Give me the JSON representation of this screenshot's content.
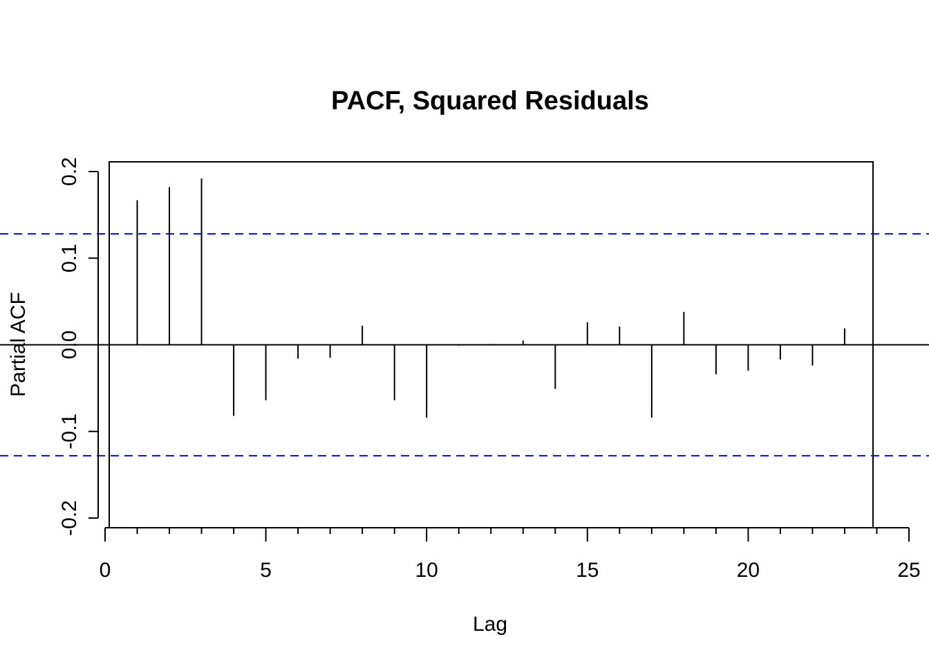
{
  "chart_data": {
    "type": "bar",
    "title": "PACF, Squared Residuals",
    "xlabel": "Lag",
    "ylabel": "Partial ACF",
    "xlim": [
      0,
      25
    ],
    "ylim": [
      -0.2,
      0.2
    ],
    "x_ticks": [
      0,
      5,
      10,
      15,
      20,
      25
    ],
    "x_tick_labels": [
      "0",
      "5",
      "10",
      "15",
      "20",
      "25"
    ],
    "y_ticks": [
      -0.2,
      -0.1,
      0.0,
      0.1,
      0.2
    ],
    "y_tick_labels": [
      "-0.2",
      "-0.1",
      "0.0",
      "0.1",
      "0.2"
    ],
    "lags": [
      1,
      2,
      3,
      4,
      5,
      6,
      7,
      8,
      9,
      10,
      11,
      12,
      13,
      14,
      15,
      16,
      17,
      18,
      19,
      20,
      21,
      22,
      23
    ],
    "values": [
      0.167,
      0.182,
      0.192,
      -0.082,
      -0.064,
      -0.016,
      -0.015,
      0.022,
      -0.064,
      -0.084,
      -0.001,
      0.001,
      0.005,
      -0.051,
      0.026,
      0.021,
      -0.084,
      0.038,
      -0.034,
      -0.03,
      -0.017,
      -0.024,
      0.019
    ],
    "confidence_bound": 0.128,
    "colors": {
      "bars": "#000000",
      "confidence_lines": "#0000FF",
      "zero_line": "#000000",
      "frame": "#000000"
    },
    "grid": false,
    "legend": "none"
  }
}
